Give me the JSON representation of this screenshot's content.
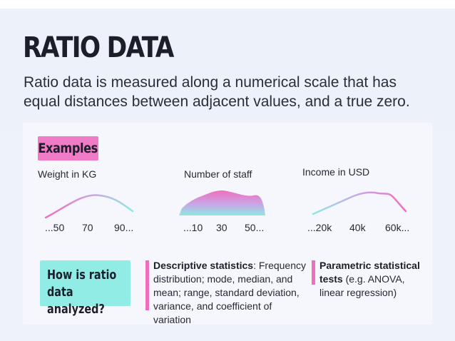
{
  "title": "RATIO DATA",
  "subtitle": "Ratio data is measured along a numerical scale that has equal distances between adjacent values, and a true zero.",
  "examples_label": "Examples",
  "examples": [
    {
      "label": "Weight in KG",
      "ticks": [
        "...50",
        "70",
        "90..."
      ]
    },
    {
      "label": "Number of staff",
      "ticks": [
        "...10",
        "30",
        "50..."
      ]
    },
    {
      "label": "Income in USD",
      "ticks": [
        "...20k",
        "40k",
        "60k..."
      ]
    }
  ],
  "analysis_label": "How is ratio data analyzed?",
  "descriptive": {
    "heading": "Descriptive statistics",
    "text": ": Frequency distribution; mode, median, and mean; range, standard deviation, variance, and coefficient of variation"
  },
  "parametric": {
    "heading": "Parametric statistical tests",
    "text": " (e.g. ANOVA, linear regression)"
  },
  "colors": {
    "pink": "#f07bc6",
    "teal": "#90ece4",
    "background": "#eef2fb"
  }
}
